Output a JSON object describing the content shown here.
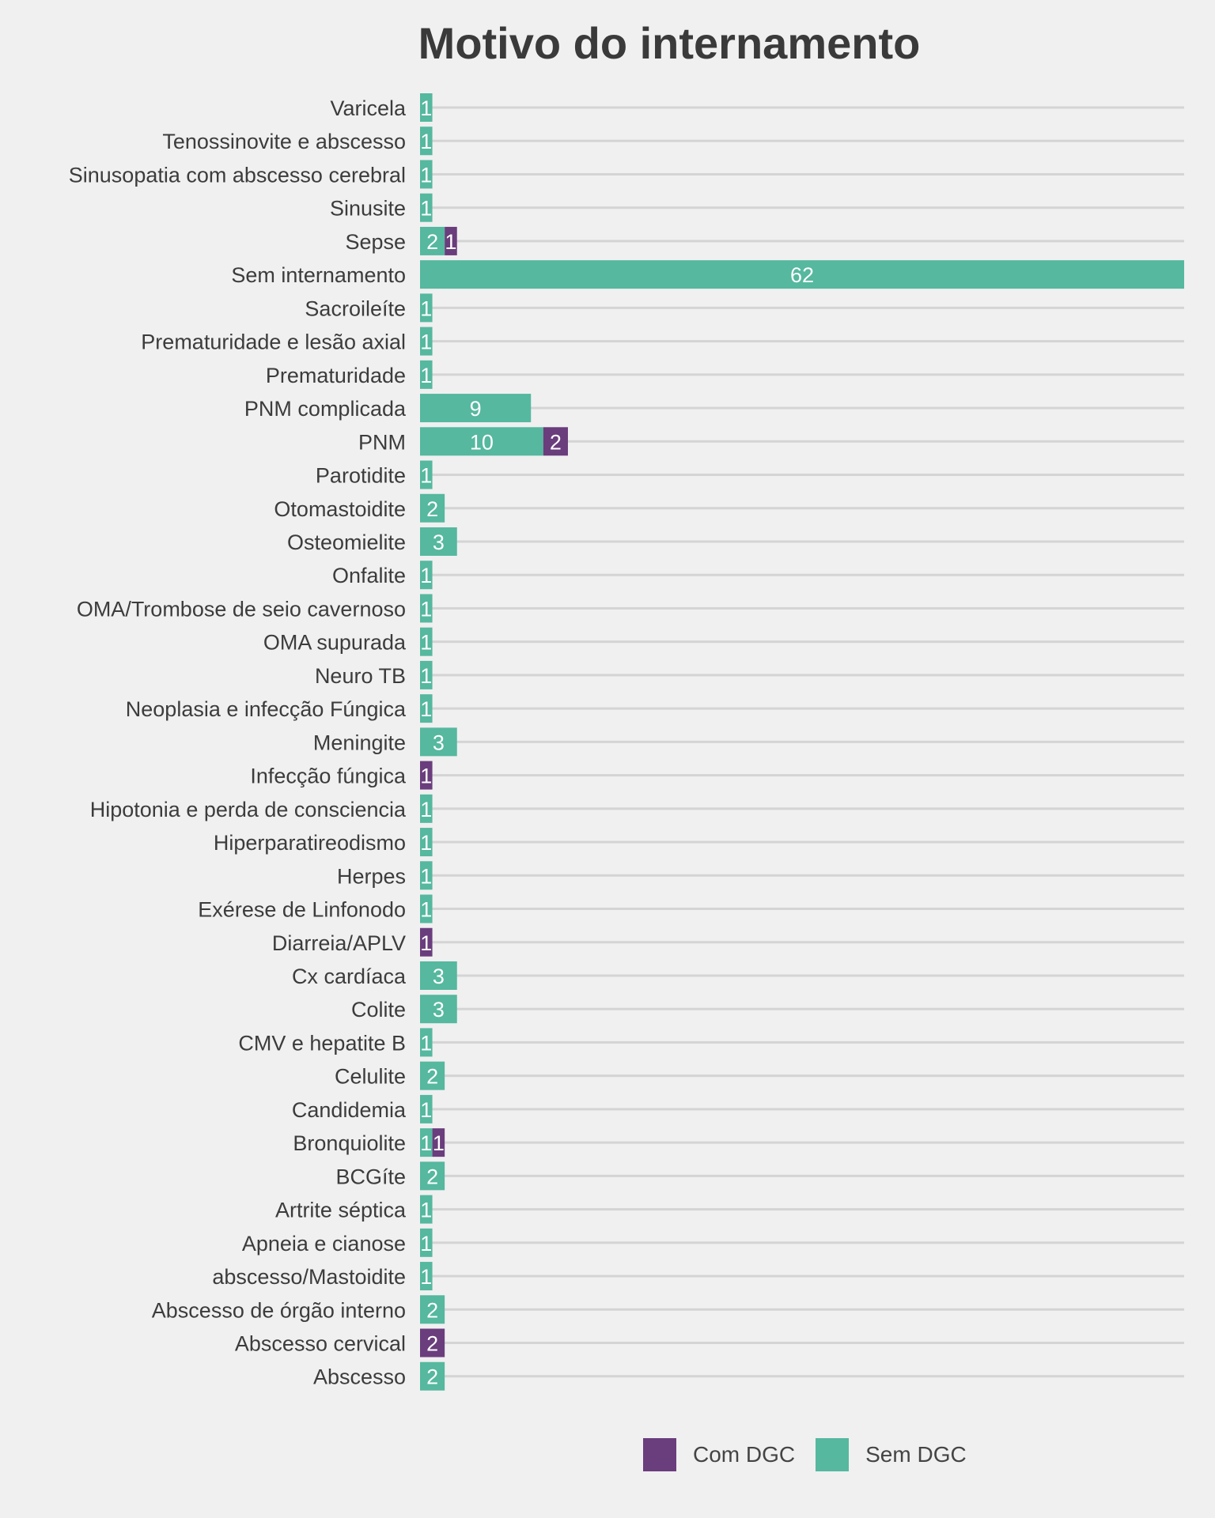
{
  "chart_data": {
    "type": "bar",
    "orientation": "horizontal",
    "stacked": true,
    "title": "Motivo do internamento",
    "xlabel": "",
    "ylabel": "",
    "xlim": [
      0,
      62
    ],
    "grid": false,
    "legend_position": "bottom",
    "categories": [
      "Varicela",
      "Tenossinovite e abscesso",
      "Sinusopatia com abscesso cerebral",
      "Sinusite",
      "Sepse",
      "Sem internamento",
      "Sacroileíte",
      "Prematuridade e lesão axial",
      "Prematuridade",
      "PNM complicada",
      "PNM",
      "Parotidite",
      "Otomastoidite",
      "Osteomielite",
      "Onfalite",
      "OMA/Trombose de seio cavernoso",
      "OMA supurada",
      "Neuro TB",
      "Neoplasia e infecção Fúngica",
      "Meningite",
      "Infecção fúngica",
      "Hipotonia e perda de consciencia",
      "Hiperparatireodismo",
      "Herpes",
      "Exérese de Linfonodo",
      "Diarreia/APLV",
      "Cx cardíaca",
      "Colite",
      "CMV e hepatite B",
      "Celulite",
      "Candidemia",
      "Bronquiolite",
      "BCGíte",
      "Artrite séptica",
      "Apneia e cianose",
      "abscesso/Mastoidite",
      "Abscesso de órgão interno",
      "Abscesso cervical",
      "Abscesso"
    ],
    "series": [
      {
        "name": "Sem DGC",
        "color": "#55b89f",
        "values": [
          1,
          1,
          1,
          1,
          2,
          62,
          1,
          1,
          1,
          9,
          10,
          1,
          2,
          3,
          1,
          1,
          1,
          1,
          1,
          3,
          0,
          1,
          1,
          1,
          1,
          0,
          3,
          3,
          1,
          2,
          1,
          1,
          2,
          1,
          1,
          1,
          2,
          0,
          2
        ]
      },
      {
        "name": "Com DGC",
        "color": "#6a3d7c",
        "values": [
          0,
          0,
          0,
          0,
          1,
          0,
          0,
          0,
          0,
          0,
          2,
          0,
          0,
          0,
          0,
          0,
          0,
          0,
          0,
          0,
          1,
          0,
          0,
          0,
          0,
          1,
          0,
          0,
          0,
          0,
          0,
          1,
          0,
          0,
          0,
          0,
          0,
          2,
          0
        ]
      }
    ],
    "legend": [
      {
        "label": "Com DGC",
        "color": "#6a3d7c"
      },
      {
        "label": "Sem DGC",
        "color": "#55b89f"
      }
    ],
    "track_color": "#d4d4d4",
    "label_color": "#ffffff"
  }
}
